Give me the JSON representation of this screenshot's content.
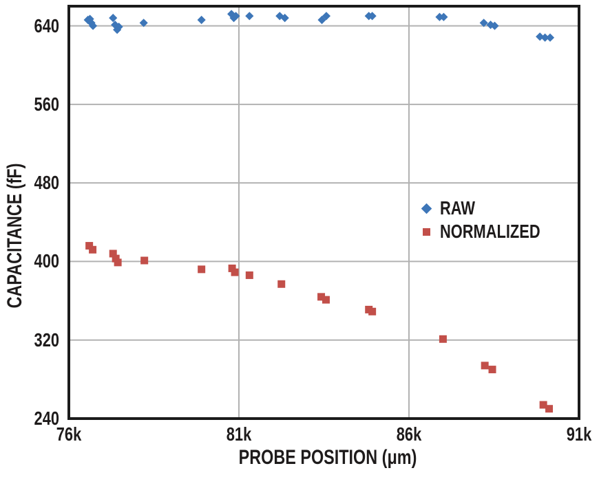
{
  "chart_data": {
    "type": "scatter",
    "xlabel": "PROBE POSITION (μm)",
    "ylabel": "CAPACITANCE (fF)",
    "xlim": [
      76000,
      91000
    ],
    "ylim": [
      240,
      660
    ],
    "x_ticks": [
      {
        "value": 76000,
        "label": "76k"
      },
      {
        "value": 81000,
        "label": "81k"
      },
      {
        "value": 86000,
        "label": "86k"
      },
      {
        "value": 91000,
        "label": "91k"
      }
    ],
    "y_ticks": [
      {
        "value": 240,
        "label": "240"
      },
      {
        "value": 320,
        "label": "320"
      },
      {
        "value": 400,
        "label": "400"
      },
      {
        "value": 480,
        "label": "480"
      },
      {
        "value": 560,
        "label": "560"
      },
      {
        "value": 640,
        "label": "640"
      }
    ],
    "grid": {
      "on": true,
      "color": "#b2b2b2",
      "border_color": "#1b1b1b"
    },
    "legend": {
      "position": "inside-right"
    },
    "series": [
      {
        "name": "RAW",
        "marker": "diamond",
        "color": "#3D76B8",
        "points": [
          [
            76560,
            646
          ],
          [
            76620,
            647
          ],
          [
            76660,
            643
          ],
          [
            76710,
            640
          ],
          [
            77300,
            648
          ],
          [
            77360,
            641
          ],
          [
            77420,
            636
          ],
          [
            77470,
            639
          ],
          [
            78200,
            643
          ],
          [
            79900,
            646
          ],
          [
            80780,
            652
          ],
          [
            80850,
            648
          ],
          [
            80910,
            650
          ],
          [
            81310,
            650
          ],
          [
            82200,
            650
          ],
          [
            82350,
            648
          ],
          [
            83440,
            646
          ],
          [
            83570,
            650
          ],
          [
            84820,
            650
          ],
          [
            84920,
            650
          ],
          [
            86900,
            649
          ],
          [
            87020,
            649
          ],
          [
            88200,
            643
          ],
          [
            88400,
            641
          ],
          [
            88520,
            640
          ],
          [
            89850,
            629
          ],
          [
            90000,
            628
          ],
          [
            90150,
            628
          ]
        ]
      },
      {
        "name": "NORMALIZED",
        "marker": "square",
        "color": "#C24F49",
        "points": [
          [
            76600,
            416
          ],
          [
            76700,
            412
          ],
          [
            77300,
            408
          ],
          [
            77380,
            403
          ],
          [
            77440,
            399
          ],
          [
            78220,
            401
          ],
          [
            79900,
            392
          ],
          [
            80800,
            393
          ],
          [
            80880,
            389
          ],
          [
            81310,
            386
          ],
          [
            82250,
            377
          ],
          [
            83420,
            364
          ],
          [
            83560,
            361
          ],
          [
            84820,
            351
          ],
          [
            84920,
            349
          ],
          [
            87000,
            321
          ],
          [
            88230,
            294
          ],
          [
            88450,
            290
          ],
          [
            89950,
            254
          ],
          [
            90120,
            250
          ]
        ]
      }
    ]
  }
}
